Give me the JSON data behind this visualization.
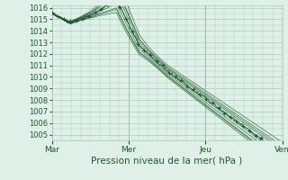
{
  "title": "",
  "xlabel": "Pression niveau de la mer( hPa )",
  "ylabel": "",
  "xlim": [
    0,
    1.0
  ],
  "ylim": [
    1004.5,
    1016.2
  ],
  "yticks": [
    1005,
    1006,
    1007,
    1008,
    1009,
    1010,
    1011,
    1012,
    1013,
    1014,
    1015,
    1016
  ],
  "xtick_labels": [
    "Mar",
    "Mer",
    "Jeu",
    "Ven"
  ],
  "xtick_positions": [
    0.0,
    0.333,
    0.667,
    1.0
  ],
  "bg_color": "#dff0e8",
  "grid_color": "#a8ccb8",
  "line_color": "#1a5c2a"
}
